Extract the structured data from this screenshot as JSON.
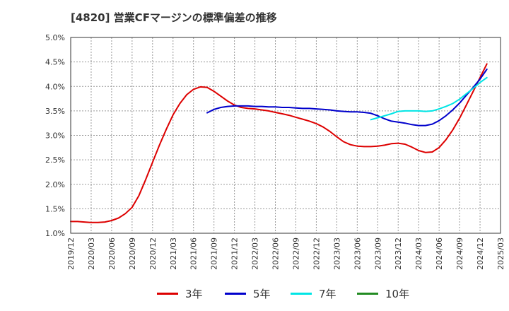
{
  "title": "[4820]  営業CFマージンの標準偏差の推移",
  "chart_data": {
    "type": "line",
    "title": "[4820]  営業CFマージンの標準偏差の推移",
    "xlabel": "",
    "ylabel": "",
    "ylim": [
      1.0,
      5.0
    ],
    "xlim": [
      "2019/12",
      "2025/03"
    ],
    "y_ticks": [
      "1.0%",
      "1.5%",
      "2.0%",
      "2.5%",
      "3.0%",
      "3.5%",
      "4.0%",
      "4.5%",
      "5.0%"
    ],
    "x_ticks": [
      "2019/12",
      "2020/03",
      "2020/06",
      "2020/09",
      "2020/12",
      "2021/03",
      "2021/06",
      "2021/09",
      "2021/12",
      "2022/03",
      "2022/06",
      "2022/09",
      "2022/12",
      "2023/03",
      "2023/06",
      "2023/09",
      "2023/12",
      "2024/03",
      "2024/06",
      "2024/09",
      "2024/12",
      "2025/03"
    ],
    "grid": true,
    "legend_position": "bottom",
    "series": [
      {
        "name": "3年",
        "color": "#dd0000",
        "points": [
          [
            "2019/12",
            1.24
          ],
          [
            "2020/01",
            1.24
          ],
          [
            "2020/02",
            1.23
          ],
          [
            "2020/03",
            1.22
          ],
          [
            "2020/04",
            1.22
          ],
          [
            "2020/05",
            1.23
          ],
          [
            "2020/06",
            1.26
          ],
          [
            "2020/07",
            1.31
          ],
          [
            "2020/08",
            1.4
          ],
          [
            "2020/09",
            1.53
          ],
          [
            "2020/10",
            1.77
          ],
          [
            "2020/11",
            2.1
          ],
          [
            "2020/12",
            2.45
          ],
          [
            "2021/01",
            2.8
          ],
          [
            "2021/02",
            3.12
          ],
          [
            "2021/03",
            3.42
          ],
          [
            "2021/04",
            3.65
          ],
          [
            "2021/05",
            3.83
          ],
          [
            "2021/06",
            3.94
          ],
          [
            "2021/07",
            3.99
          ],
          [
            "2021/08",
            3.98
          ],
          [
            "2021/09",
            3.9
          ],
          [
            "2021/10",
            3.8
          ],
          [
            "2021/11",
            3.7
          ],
          [
            "2021/12",
            3.62
          ],
          [
            "2022/01",
            3.57
          ],
          [
            "2022/02",
            3.55
          ],
          [
            "2022/03",
            3.54
          ],
          [
            "2022/04",
            3.52
          ],
          [
            "2022/05",
            3.5
          ],
          [
            "2022/06",
            3.47
          ],
          [
            "2022/07",
            3.44
          ],
          [
            "2022/08",
            3.41
          ],
          [
            "2022/09",
            3.37
          ],
          [
            "2022/10",
            3.33
          ],
          [
            "2022/11",
            3.29
          ],
          [
            "2022/12",
            3.24
          ],
          [
            "2023/01",
            3.17
          ],
          [
            "2023/02",
            3.08
          ],
          [
            "2023/03",
            2.97
          ],
          [
            "2023/04",
            2.87
          ],
          [
            "2023/05",
            2.81
          ],
          [
            "2023/06",
            2.78
          ],
          [
            "2023/07",
            2.77
          ],
          [
            "2023/08",
            2.77
          ],
          [
            "2023/09",
            2.78
          ],
          [
            "2023/10",
            2.8
          ],
          [
            "2023/11",
            2.83
          ],
          [
            "2023/12",
            2.84
          ],
          [
            "2024/01",
            2.82
          ],
          [
            "2024/02",
            2.76
          ],
          [
            "2024/03",
            2.69
          ],
          [
            "2024/04",
            2.65
          ],
          [
            "2024/05",
            2.66
          ],
          [
            "2024/06",
            2.75
          ],
          [
            "2024/07",
            2.91
          ],
          [
            "2024/08",
            3.11
          ],
          [
            "2024/09",
            3.35
          ],
          [
            "2024/10",
            3.62
          ],
          [
            "2024/11",
            3.9
          ],
          [
            "2024/12",
            4.18
          ],
          [
            "2025/01",
            4.46
          ]
        ]
      },
      {
        "name": "5年",
        "color": "#0000cc",
        "points": [
          [
            "2021/08",
            3.46
          ],
          [
            "2021/09",
            3.53
          ],
          [
            "2021/10",
            3.57
          ],
          [
            "2021/11",
            3.59
          ],
          [
            "2021/12",
            3.6
          ],
          [
            "2022/01",
            3.6
          ],
          [
            "2022/02",
            3.6
          ],
          [
            "2022/03",
            3.59
          ],
          [
            "2022/04",
            3.59
          ],
          [
            "2022/05",
            3.58
          ],
          [
            "2022/06",
            3.58
          ],
          [
            "2022/07",
            3.57
          ],
          [
            "2022/08",
            3.57
          ],
          [
            "2022/09",
            3.56
          ],
          [
            "2022/10",
            3.55
          ],
          [
            "2022/11",
            3.55
          ],
          [
            "2022/12",
            3.54
          ],
          [
            "2023/01",
            3.53
          ],
          [
            "2023/02",
            3.52
          ],
          [
            "2023/03",
            3.5
          ],
          [
            "2023/04",
            3.49
          ],
          [
            "2023/05",
            3.48
          ],
          [
            "2023/06",
            3.48
          ],
          [
            "2023/07",
            3.47
          ],
          [
            "2023/08",
            3.45
          ],
          [
            "2023/09",
            3.4
          ],
          [
            "2023/10",
            3.34
          ],
          [
            "2023/11",
            3.29
          ],
          [
            "2023/12",
            3.27
          ],
          [
            "2024/01",
            3.25
          ],
          [
            "2024/02",
            3.22
          ],
          [
            "2024/03",
            3.2
          ],
          [
            "2024/04",
            3.2
          ],
          [
            "2024/05",
            3.23
          ],
          [
            "2024/06",
            3.3
          ],
          [
            "2024/07",
            3.4
          ],
          [
            "2024/08",
            3.52
          ],
          [
            "2024/09",
            3.66
          ],
          [
            "2024/10",
            3.82
          ],
          [
            "2024/11",
            3.98
          ],
          [
            "2024/12",
            4.15
          ],
          [
            "2025/01",
            4.35
          ]
        ]
      },
      {
        "name": "7年",
        "color": "#00e5e5",
        "points": [
          [
            "2023/08",
            3.32
          ],
          [
            "2023/09",
            3.36
          ],
          [
            "2023/10",
            3.4
          ],
          [
            "2023/11",
            3.44
          ],
          [
            "2023/12",
            3.49
          ],
          [
            "2024/01",
            3.5
          ],
          [
            "2024/02",
            3.5
          ],
          [
            "2024/03",
            3.5
          ],
          [
            "2024/04",
            3.49
          ],
          [
            "2024/05",
            3.5
          ],
          [
            "2024/06",
            3.54
          ],
          [
            "2024/07",
            3.59
          ],
          [
            "2024/08",
            3.65
          ],
          [
            "2024/09",
            3.74
          ],
          [
            "2024/10",
            3.85
          ],
          [
            "2024/11",
            3.96
          ],
          [
            "2024/12",
            4.08
          ],
          [
            "2025/01",
            4.18
          ]
        ]
      },
      {
        "name": "10年",
        "color": "#228b22",
        "points": []
      }
    ]
  }
}
